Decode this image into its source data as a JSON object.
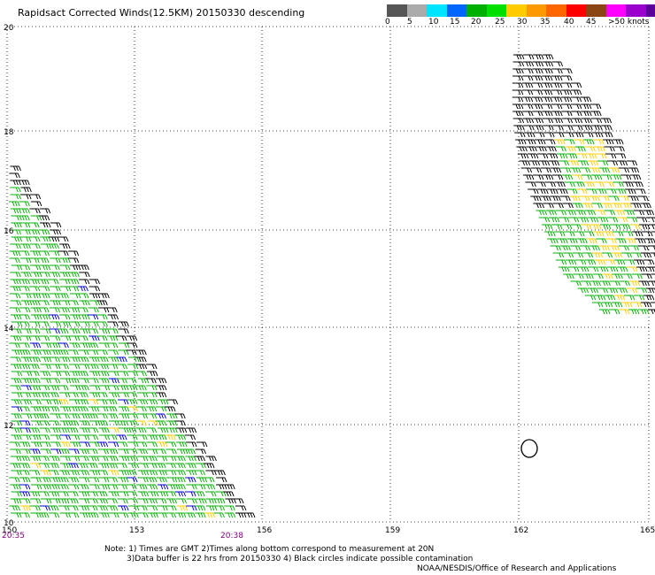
{
  "title": "Rapidsact Corrected Winds(12.5KM) 20150330 descending",
  "colorbar": {
    "colors": [
      "#555555",
      "#aaaaaa",
      "#00e5ff",
      "#0066ff",
      "#00b000",
      "#00e000",
      "#ffcc00",
      "#ff9900",
      "#ff6600",
      "#ff0000",
      "#8b4513",
      "#ff00ff",
      "#9900cc",
      "#5b0099"
    ],
    "labels": [
      "0",
      "5",
      "10",
      "15",
      "20",
      "25",
      "30",
      "35",
      "40",
      "45",
      ">50 knots"
    ]
  },
  "map": {
    "lon_ticks": [
      "150",
      "153",
      "156",
      "159",
      "162",
      "165"
    ],
    "lat_ticks": [
      "20",
      "18",
      "16",
      "14",
      "12",
      "10"
    ],
    "time_labels": [
      "20:35",
      "20:38"
    ],
    "barb_colors": {
      "green": "#00b000",
      "black": "#000000",
      "blue": "#0000cc",
      "yellow": "#ffcc00"
    }
  },
  "notes": {
    "line1": "Note: 1) Times are GMT 2)Times along bottom correspond to measurement at 20N",
    "line2": "3)Data buffer is 22 hrs from 20150330 4) Black circles indicate possible contamination",
    "line3": "NOAA/NESDIS/Office of Research and Applications"
  }
}
